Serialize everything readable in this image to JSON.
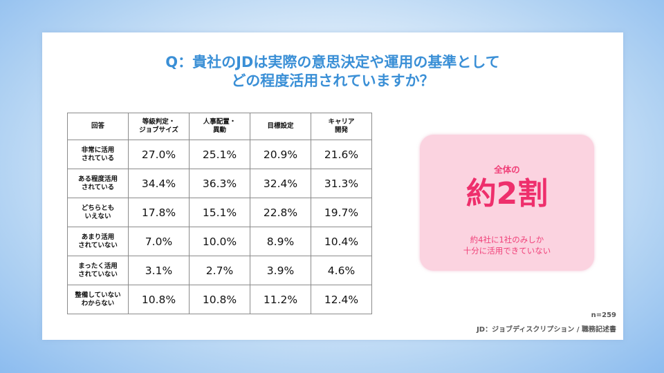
{
  "title": {
    "line1": "Q：貴社のJDは実際の意思決定や運用の基準として",
    "line2": "どの程度活用されていますか？"
  },
  "chart_data": {
    "type": "table",
    "columns": [
      "回答",
      "等級判定・ジョブサイズ",
      "人事配置・異動",
      "目標設定",
      "キャリア開発"
    ],
    "column_lines": [
      [
        "回答"
      ],
      [
        "等級判定・",
        "ジョブサイズ"
      ],
      [
        "人事配置・",
        "異動"
      ],
      [
        "目標設定"
      ],
      [
        "キャリア",
        "開発"
      ]
    ],
    "rows": [
      {
        "label_lines": [
          "非常に活用",
          "されている"
        ],
        "values": [
          "27.0%",
          "25.1%",
          "20.9%",
          "21.6%"
        ]
      },
      {
        "label_lines": [
          "ある程度活用",
          "されている"
        ],
        "values": [
          "34.4%",
          "36.3%",
          "32.4%",
          "31.3%"
        ]
      },
      {
        "label_lines": [
          "どちらとも",
          "いえない"
        ],
        "values": [
          "17.8%",
          "15.1%",
          "22.8%",
          "19.7%"
        ]
      },
      {
        "label_lines": [
          "あまり活用",
          "されていない"
        ],
        "values": [
          "7.0%",
          "10.0%",
          "8.9%",
          "10.4%"
        ]
      },
      {
        "label_lines": [
          "まったく活用",
          "されていない"
        ],
        "values": [
          "3.1%",
          "2.7%",
          "3.9%",
          "4.6%"
        ]
      },
      {
        "label_lines": [
          "整備していない",
          "わからない"
        ],
        "values": [
          "10.8%",
          "10.8%",
          "11.2%",
          "12.4%"
        ]
      }
    ]
  },
  "callout": {
    "small_title": "全体の",
    "big": "約2割",
    "sub_line1": "約4社に1社のみしか",
    "sub_line2": "十分に活用できていない"
  },
  "footer": {
    "sample": "n=259",
    "note": "JD：ジョブディスクリプション / 職務記述書"
  },
  "colors": {
    "title": "#3a8fd6",
    "callout_bg": "#fbd3e0",
    "callout_text": "#ee2f6c"
  }
}
